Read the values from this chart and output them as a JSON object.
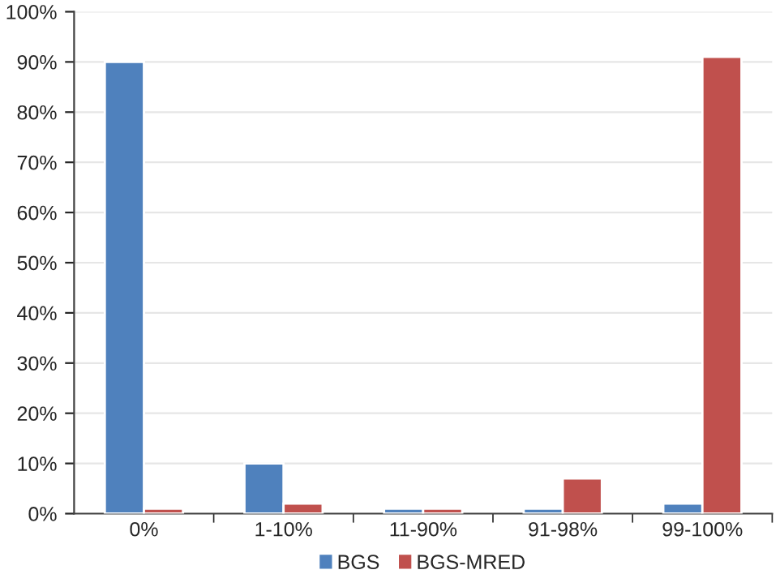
{
  "chart_data": {
    "type": "bar",
    "categories": [
      "0%",
      "1-10%",
      "11-90%",
      "91-98%",
      "99-100%"
    ],
    "series": [
      {
        "name": "BGS",
        "color": "#4f81bd",
        "values": [
          90,
          10,
          1,
          1,
          2
        ]
      },
      {
        "name": "BGS-MRED",
        "color": "#c0504d",
        "values": [
          1,
          2,
          1,
          7,
          91
        ]
      }
    ],
    "ylim": [
      0,
      100
    ],
    "yticks": [
      {
        "value": 0,
        "label": "0%"
      },
      {
        "value": 10,
        "label": "10%"
      },
      {
        "value": 20,
        "label": "20%"
      },
      {
        "value": 30,
        "label": "30%"
      },
      {
        "value": 40,
        "label": "40%"
      },
      {
        "value": 50,
        "label": "50%"
      },
      {
        "value": 60,
        "label": "60%"
      },
      {
        "value": 70,
        "label": "70%"
      },
      {
        "value": 80,
        "label": "80%"
      },
      {
        "value": 90,
        "label": "90%"
      },
      {
        "value": 100,
        "label": "100%"
      }
    ],
    "grid": "y",
    "legend": "bottom"
  }
}
